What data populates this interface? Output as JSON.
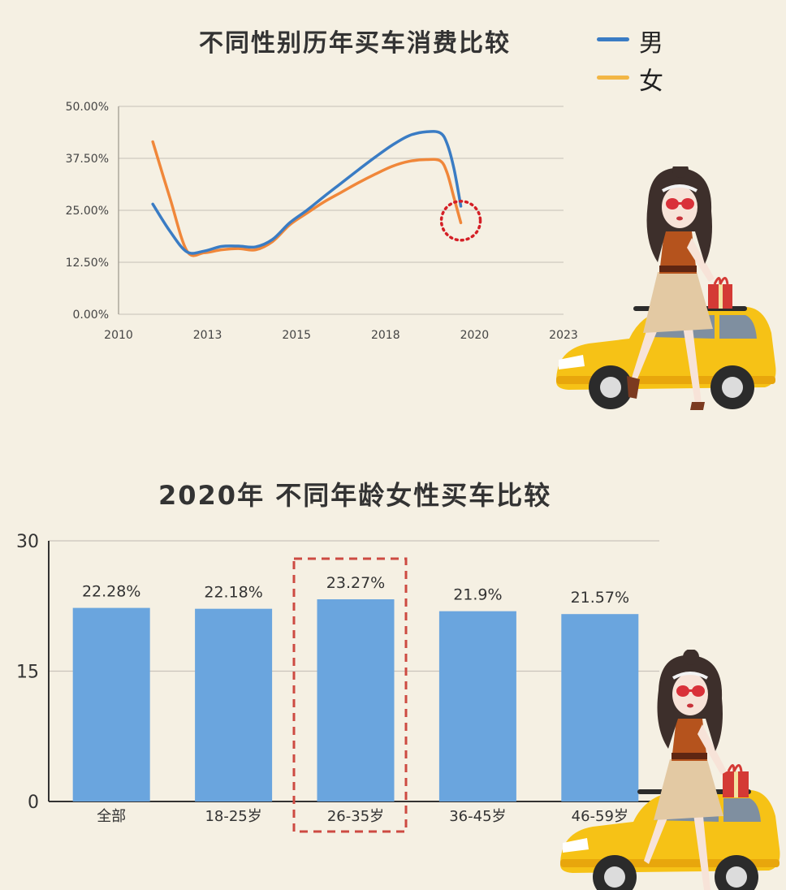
{
  "chart_data": [
    {
      "type": "line",
      "title": "不同性别历年买车消费比较",
      "xlim": [
        2010,
        2023
      ],
      "xticks": [
        "2010",
        "2013",
        "2015",
        "2018",
        "2020",
        "2023"
      ],
      "ylim": [
        0,
        50
      ],
      "yticks": [
        "0.00%",
        "12.50%",
        "25.00%",
        "37.50%",
        "50.00%"
      ],
      "grid": true,
      "legend_position": "top-right",
      "series": [
        {
          "name": "男",
          "color": "#3a7cc4",
          "x": [
            2011.0,
            2011.5,
            2012.0,
            2012.5,
            2013.0,
            2013.5,
            2014.0,
            2014.5,
            2015.0,
            2015.5,
            2016.0,
            2016.5,
            2017.0,
            2017.5,
            2018.0,
            2018.5,
            2019.0,
            2019.4,
            2019.6,
            2019.8,
            2020.0
          ],
          "y": [
            26.5,
            20.0,
            15.0,
            15.2,
            16.3,
            16.4,
            16.2,
            18.0,
            22.0,
            25.0,
            28.3,
            31.5,
            34.7,
            37.8,
            40.7,
            43.0,
            43.9,
            43.6,
            41.0,
            35.0,
            26.0
          ]
        },
        {
          "name": "女",
          "color": "#f0873a",
          "x": [
            2011.0,
            2011.5,
            2012.0,
            2012.5,
            2013.0,
            2013.5,
            2014.0,
            2014.5,
            2015.0,
            2015.5,
            2016.0,
            2016.5,
            2017.0,
            2017.5,
            2018.0,
            2018.5,
            2019.0,
            2019.4,
            2019.6,
            2019.8,
            2020.0
          ],
          "y": [
            41.5,
            28.0,
            15.2,
            14.8,
            15.5,
            15.8,
            15.5,
            17.5,
            21.5,
            24.3,
            27.0,
            29.3,
            31.6,
            33.7,
            35.6,
            36.8,
            37.2,
            36.9,
            34.0,
            28.0,
            22.0
          ]
        }
      ],
      "annotation": {
        "type": "dotted-circle",
        "x": 2020.0,
        "y": 22.5,
        "color": "#d41f26"
      }
    },
    {
      "type": "bar",
      "title": "2020年 不同年龄女性买车比较",
      "categories": [
        "全部",
        "18-25岁",
        "26-35岁",
        "36-45岁",
        "46-59岁"
      ],
      "values": [
        22.28,
        22.18,
        23.27,
        21.9,
        21.57
      ],
      "value_labels": [
        "22.28%",
        "22.18%",
        "23.27%",
        "21.9%",
        "21.57%"
      ],
      "ylim": [
        0,
        30
      ],
      "yticks": [
        "0",
        "15",
        "30"
      ],
      "grid": true,
      "bar_color": "#6aa5de",
      "highlight": {
        "category": "26-35岁",
        "style": "dashed-box",
        "color": "#cd4a42"
      }
    }
  ]
}
